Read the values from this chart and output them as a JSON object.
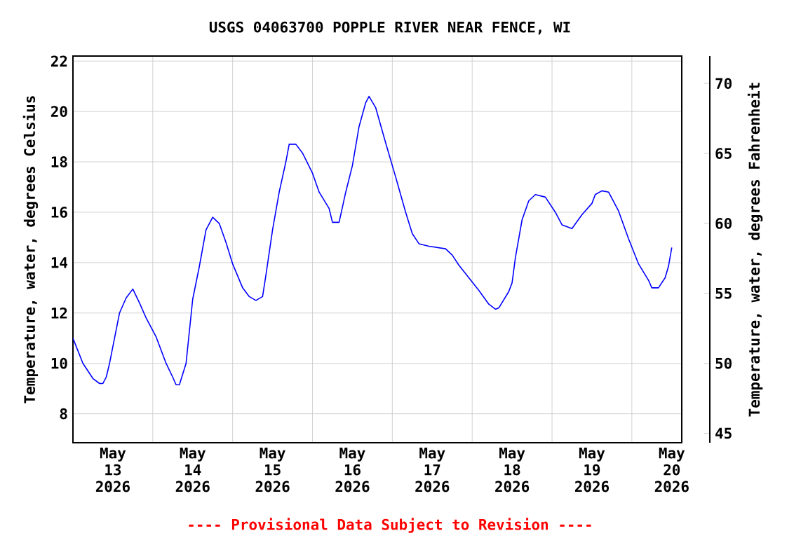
{
  "chart_data": {
    "type": "line",
    "title": "USGS 04063700 POPPLE RIVER NEAR FENCE, WI",
    "ylabel": "Temperature, water, degrees Celsius",
    "y2label": "Temperature, water, degrees Fahrenheit",
    "annotations": [
      "---- Provisional Data Subject to Revision ----"
    ],
    "x": [
      "2026-05-13T00:00",
      "2026-05-13T03:00",
      "2026-05-13T06:00",
      "2026-05-13T08:00",
      "2026-05-13T09:00",
      "2026-05-13T10:00",
      "2026-05-13T11:00",
      "2026-05-13T14:00",
      "2026-05-13T16:00",
      "2026-05-13T18:00",
      "2026-05-13T20:00",
      "2026-05-13T22:00",
      "2026-05-14T01:00",
      "2026-05-14T04:00",
      "2026-05-14T06:00",
      "2026-05-14T07:00",
      "2026-05-14T08:00",
      "2026-05-14T10:00",
      "2026-05-14T12:00",
      "2026-05-14T14:00",
      "2026-05-14T16:00",
      "2026-05-14T18:00",
      "2026-05-14T20:00",
      "2026-05-14T22:00",
      "2026-05-15T00:00",
      "2026-05-15T03:00",
      "2026-05-15T05:00",
      "2026-05-15T07:00",
      "2026-05-15T09:00",
      "2026-05-15T10:00",
      "2026-05-15T12:00",
      "2026-05-15T14:00",
      "2026-05-15T16:00",
      "2026-05-15T17:00",
      "2026-05-15T19:00",
      "2026-05-15T21:00",
      "2026-05-16T00:00",
      "2026-05-16T02:00",
      "2026-05-16T05:00",
      "2026-05-16T06:00",
      "2026-05-16T08:00",
      "2026-05-16T10:00",
      "2026-05-16T12:00",
      "2026-05-16T14:00",
      "2026-05-16T16:00",
      "2026-05-16T17:00",
      "2026-05-16T19:00",
      "2026-05-16T22:00",
      "2026-05-17T01:00",
      "2026-05-17T04:00",
      "2026-05-17T06:00",
      "2026-05-17T08:00",
      "2026-05-17T11:00",
      "2026-05-17T16:00",
      "2026-05-17T18:00",
      "2026-05-17T20:00",
      "2026-05-17T23:00",
      "2026-05-18T02:00",
      "2026-05-18T05:00",
      "2026-05-18T07:00",
      "2026-05-18T08:00",
      "2026-05-18T11:00",
      "2026-05-18T12:00",
      "2026-05-18T13:00",
      "2026-05-18T15:00",
      "2026-05-18T17:00",
      "2026-05-18T19:00",
      "2026-05-18T22:00",
      "2026-05-19T01:00",
      "2026-05-19T03:00",
      "2026-05-19T06:00",
      "2026-05-19T09:00",
      "2026-05-19T12:00",
      "2026-05-19T13:00",
      "2026-05-19T15:00",
      "2026-05-19T17:00",
      "2026-05-19T20:00",
      "2026-05-19T23:00",
      "2026-05-20T02:00",
      "2026-05-20T05:00",
      "2026-05-20T06:00",
      "2026-05-20T08:00",
      "2026-05-20T10:00",
      "2026-05-20T11:00",
      "2026-05-20T12:00"
    ],
    "series": [
      {
        "color": "#0000ff",
        "values": [
          11.0,
          10.0,
          9.4,
          9.2,
          9.2,
          9.45,
          10.0,
          12.0,
          12.6,
          12.95,
          12.4,
          11.8,
          11.05,
          10.0,
          9.45,
          9.15,
          9.15,
          10.0,
          12.55,
          13.85,
          15.3,
          15.8,
          15.55,
          14.8,
          13.95,
          13.0,
          12.65,
          12.5,
          12.65,
          13.5,
          15.3,
          16.8,
          18.0,
          18.7,
          18.7,
          18.35,
          17.55,
          16.8,
          16.15,
          15.6,
          15.6,
          16.8,
          17.85,
          19.4,
          20.35,
          20.6,
          20.15,
          18.75,
          17.4,
          16.0,
          15.15,
          14.75,
          14.65,
          14.55,
          14.3,
          13.9,
          13.4,
          12.9,
          12.35,
          12.15,
          12.2,
          12.85,
          13.2,
          14.2,
          15.7,
          16.45,
          16.7,
          16.6,
          16.0,
          15.5,
          15.35,
          15.9,
          16.35,
          16.7,
          16.85,
          16.8,
          16.05,
          14.95,
          13.95,
          13.3,
          13.0,
          13.0,
          13.4,
          13.85,
          14.6
        ]
      }
    ],
    "xlim": [
      "2026-05-13T00:00",
      "2026-05-20T15:00"
    ],
    "xticks": [
      {
        "value": "2026-05-13T12:00",
        "label": "May 13 2026"
      },
      {
        "value": "2026-05-14T00:00",
        "label": null
      },
      {
        "value": "2026-05-14T12:00",
        "label": "May 14 2026"
      },
      {
        "value": "2026-05-15T00:00",
        "label": null
      },
      {
        "value": "2026-05-15T12:00",
        "label": "May 15 2026"
      },
      {
        "value": "2026-05-16T00:00",
        "label": null
      },
      {
        "value": "2026-05-16T12:00",
        "label": "May 16 2026"
      },
      {
        "value": "2026-05-17T00:00",
        "label": null
      },
      {
        "value": "2026-05-17T12:00",
        "label": "May 17 2026"
      },
      {
        "value": "2026-05-18T00:00",
        "label": null
      },
      {
        "value": "2026-05-18T12:00",
        "label": "May 18 2026"
      },
      {
        "value": "2026-05-19T00:00",
        "label": null
      },
      {
        "value": "2026-05-19T12:00",
        "label": "May 19 2026"
      },
      {
        "value": "2026-05-20T00:00",
        "label": null
      },
      {
        "value": "2026-05-20T12:00",
        "label": "May 20 2026"
      }
    ],
    "ylim": [
      6.85,
      22.2
    ],
    "yticks": [
      8,
      10,
      12,
      14,
      16,
      18,
      20,
      22
    ],
    "y2lim": [
      44.33,
      71.96
    ],
    "y2ticks": [
      45,
      50,
      55,
      60,
      65,
      70
    ],
    "grid": true,
    "marker": "none",
    "line_style": "solid"
  }
}
